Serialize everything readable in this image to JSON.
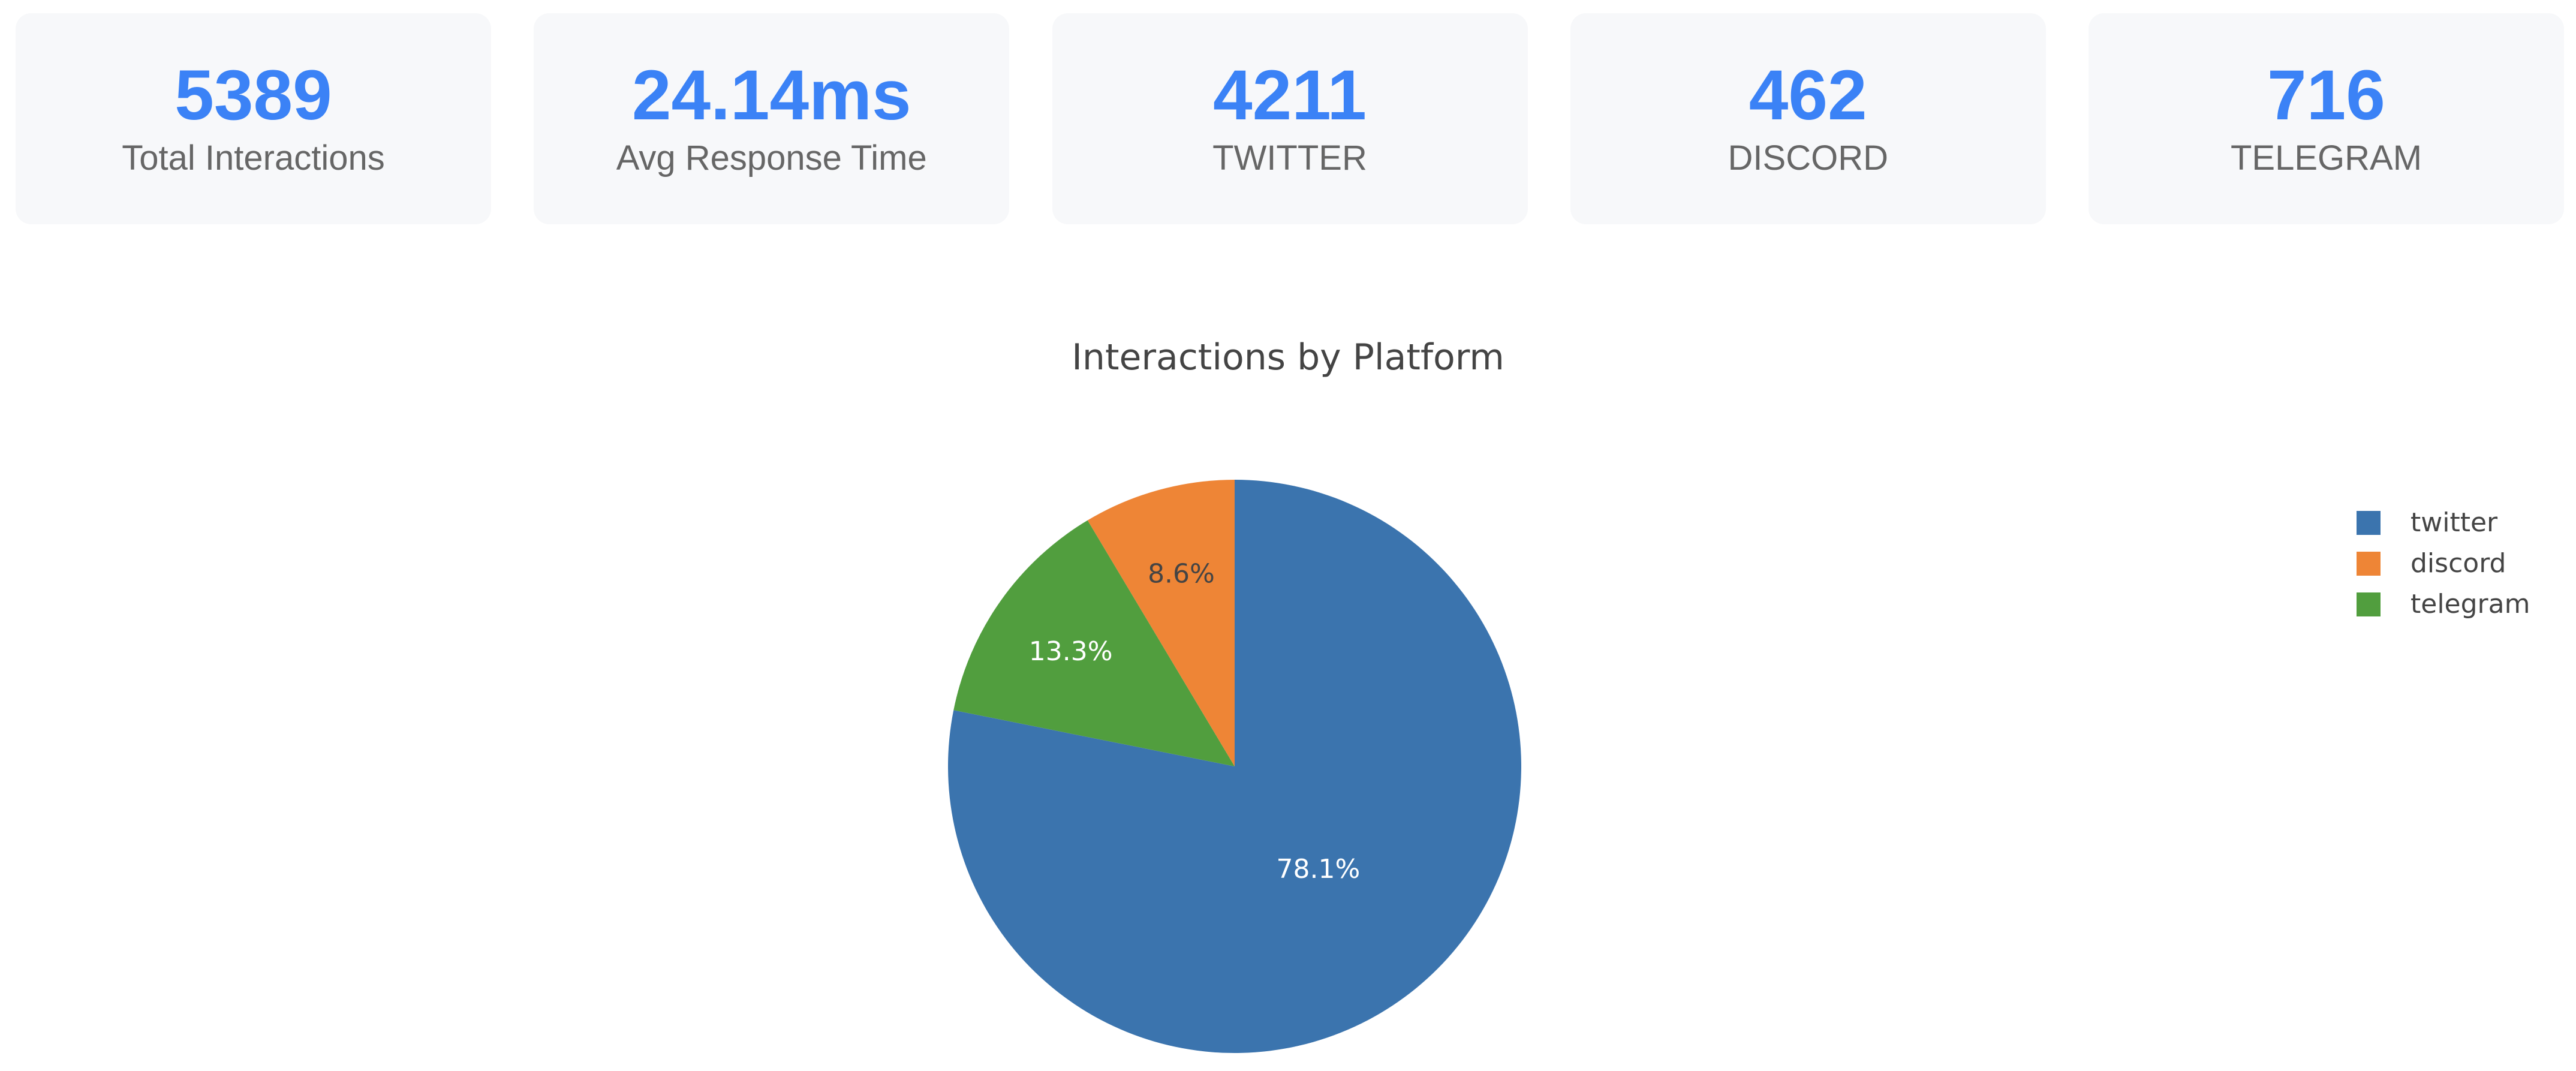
{
  "stats": [
    {
      "value": "5389",
      "label": "Total Interactions"
    },
    {
      "value": "24.14ms",
      "label": "Avg Response Time"
    },
    {
      "value": "4211",
      "label": "TWITTER"
    },
    {
      "value": "462",
      "label": "DISCORD"
    },
    {
      "value": "716",
      "label": "TELEGRAM"
    }
  ],
  "chart_data": {
    "type": "pie",
    "title": "Interactions by Platform",
    "slices": [
      {
        "label": "twitter",
        "value": 4211,
        "percent_label": "78.1%",
        "color": "#3b74ae"
      },
      {
        "label": "discord",
        "value": 462,
        "percent_label": "8.6%",
        "color": "#ee8536"
      },
      {
        "label": "telegram",
        "value": 716,
        "percent_label": "13.3%",
        "color": "#519e3e"
      }
    ],
    "legend": {
      "position": "top-right"
    }
  }
}
